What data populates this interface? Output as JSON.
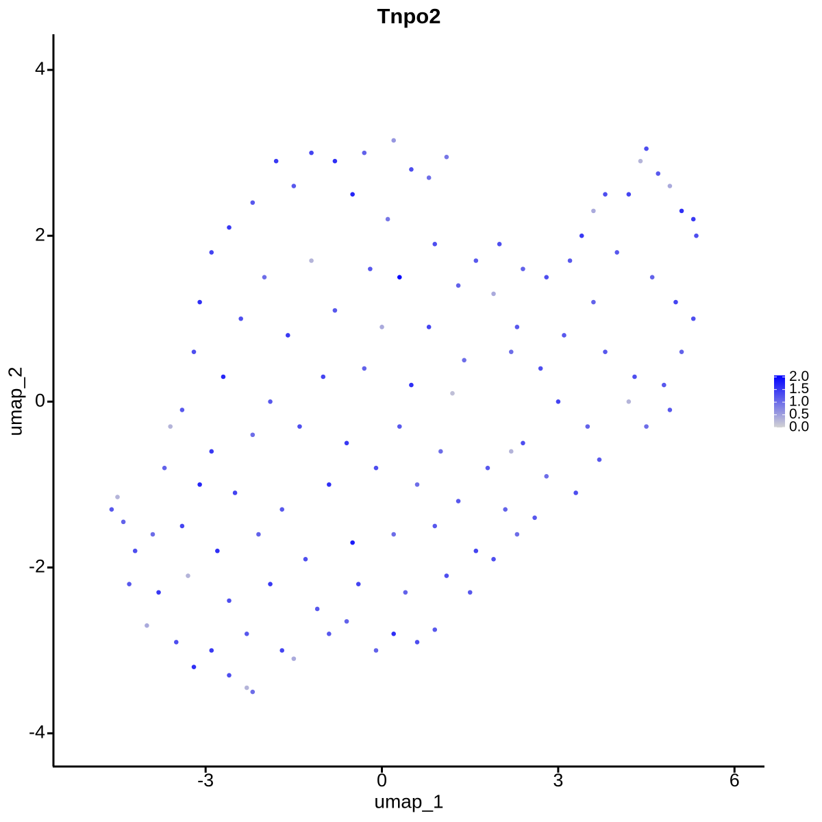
{
  "chart_data": {
    "type": "scatter",
    "title": "Tnpo2",
    "x_label": "umap_1",
    "y_label": "umap_2",
    "xlim": [
      -5.59,
      6.51
    ],
    "ylim": [
      -4.4,
      4.43
    ],
    "xticks": [
      -3,
      0,
      3,
      6
    ],
    "yticks": [
      -4,
      -2,
      0,
      2,
      4
    ],
    "grid": false,
    "color_scale": {
      "low": "#d3d3d3",
      "high": "#0000ff",
      "range": [
        0,
        2.06
      ],
      "ticks": [
        {
          "value": 0,
          "label": "0.0"
        },
        {
          "value": 0.5,
          "label": "0.5"
        },
        {
          "value": 1,
          "label": "1.0"
        },
        {
          "value": 1.5,
          "label": "1.5"
        },
        {
          "value": 2,
          "label": "2.0"
        }
      ]
    },
    "x": [
      -2.2,
      -1.8,
      -1.2,
      -0.8,
      -0.3,
      0.2,
      0.5,
      0.8,
      1.1,
      -2.6,
      -1.5,
      -0.5,
      0.1,
      -2.9,
      -2.0,
      -1.2,
      -0.2,
      0.3,
      0.9,
      1.3,
      -3.1,
      -2.4,
      -1.6,
      -0.8,
      0.0,
      0.8,
      1.4,
      -3.2,
      -2.7,
      -1.9,
      -1.0,
      -0.3,
      0.5,
      1.2,
      -3.4,
      -3.6,
      -2.9,
      -2.2,
      -1.4,
      -0.6,
      0.3,
      1.0,
      -3.7,
      -3.1,
      -2.5,
      -1.7,
      -0.9,
      -0.1,
      0.6,
      1.3,
      -4.6,
      -4.5,
      -4.4,
      -4.2,
      -3.9,
      -3.4,
      -2.8,
      -2.1,
      -1.3,
      -0.5,
      0.2,
      0.9,
      1.6,
      -4.3,
      -3.8,
      -3.3,
      -2.6,
      -1.9,
      -1.1,
      -0.4,
      0.4,
      1.1,
      -4.0,
      -3.5,
      -2.9,
      -2.3,
      -1.7,
      -0.9,
      -0.1,
      0.6,
      0.9,
      -3.2,
      -2.6,
      -2.3,
      -2.2,
      -1.5,
      -0.6,
      0.2,
      1.6,
      2.0,
      2.4,
      1.9,
      2.3,
      2.2,
      2.8,
      3.2,
      3.4,
      3.6,
      3.8,
      4.2,
      4.4,
      4.5,
      4.7,
      4.9,
      5.1,
      5.3,
      5.35,
      4.0,
      4.6,
      5.0,
      5.3,
      3.6,
      3.1,
      2.7,
      3.0,
      3.8,
      4.3,
      4.8,
      5.1,
      4.9,
      4.5,
      3.5,
      2.4,
      1.8,
      2.8,
      3.3,
      2.1,
      2.6,
      1.9,
      2.3,
      1.5,
      3.7,
      4.2,
      2.2
    ],
    "y": [
      2.4,
      2.9,
      3.0,
      2.9,
      3.0,
      3.15,
      2.8,
      2.7,
      2.95,
      2.1,
      2.6,
      2.5,
      2.2,
      1.8,
      1.5,
      1.7,
      1.6,
      1.5,
      1.9,
      1.4,
      1.2,
      1.0,
      0.8,
      1.1,
      0.9,
      0.9,
      0.5,
      0.6,
      0.3,
      0.0,
      0.3,
      0.4,
      0.2,
      0.1,
      -0.1,
      -0.3,
      -0.6,
      -0.4,
      -0.3,
      -0.5,
      -0.3,
      -0.6,
      -0.8,
      -1.0,
      -1.1,
      -1.3,
      -1.0,
      -0.8,
      -1.0,
      -1.2,
      -1.3,
      -1.15,
      -1.45,
      -1.8,
      -1.6,
      -1.5,
      -1.8,
      -1.6,
      -1.9,
      -1.7,
      -1.6,
      -1.5,
      -1.8,
      -2.2,
      -2.3,
      -2.1,
      -2.4,
      -2.2,
      -2.5,
      -2.2,
      -2.3,
      -2.1,
      -2.7,
      -2.9,
      -3.0,
      -2.8,
      -3.0,
      -2.8,
      -3.0,
      -2.9,
      -2.75,
      -3.2,
      -3.3,
      -3.45,
      -3.5,
      -3.1,
      -2.65,
      -2.8,
      1.7,
      1.9,
      1.6,
      1.3,
      0.9,
      0.6,
      1.5,
      1.7,
      2.0,
      2.3,
      2.5,
      2.5,
      2.9,
      3.05,
      2.75,
      2.6,
      2.3,
      2.2,
      2.0,
      1.8,
      1.5,
      1.2,
      1.0,
      1.2,
      0.8,
      0.4,
      0.0,
      0.6,
      0.3,
      0.2,
      0.6,
      -0.1,
      -0.3,
      -0.3,
      -0.5,
      -0.8,
      -0.9,
      -1.1,
      -1.3,
      -1.4,
      -1.9,
      -1.6,
      -2.3,
      -0.7,
      0.0,
      -0.6
    ],
    "values": [
      1.2,
      1.5,
      1.4,
      1.6,
      1.1,
      0.6,
      1.3,
      1.0,
      0.9,
      1.5,
      1.2,
      1.7,
      0.9,
      1.4,
      1.0,
      0.3,
      1.2,
      2.0,
      1.3,
      1.1,
      1.6,
      1.3,
      1.5,
      1.2,
      0.4,
      1.4,
      1.0,
      1.3,
      1.7,
      1.2,
      1.4,
      1.1,
      1.6,
      0.2,
      1.2,
      0.3,
      1.5,
      1.0,
      1.3,
      1.5,
      1.2,
      1.0,
      1.1,
      1.7,
      1.4,
      1.2,
      1.6,
      1.3,
      1.0,
      1.2,
      1.2,
      0.3,
      1.1,
      1.3,
      1.0,
      1.4,
      1.6,
      1.1,
      1.3,
      1.8,
      1.0,
      1.2,
      1.4,
      1.2,
      1.5,
      0.3,
      1.3,
      1.5,
      1.2,
      1.4,
      1.1,
      1.3,
      0.4,
      1.3,
      1.5,
      1.2,
      1.4,
      1.2,
      1.1,
      1.3,
      1.2,
      1.6,
      1.3,
      0.3,
      1.0,
      0.4,
      1.1,
      1.6,
      1.2,
      1.3,
      1.1,
      0.4,
      1.2,
      1.0,
      1.3,
      1.2,
      1.5,
      0.4,
      1.3,
      1.4,
      0.3,
      1.3,
      1.2,
      0.4,
      1.6,
      1.5,
      1.3,
      1.2,
      1.1,
      1.4,
      1.3,
      1.1,
      1.2,
      1.3,
      1.4,
      1.2,
      1.3,
      1.2,
      1.1,
      1.2,
      1.0,
      1.1,
      1.3,
      1.2,
      1.0,
      1.3,
      1.1,
      1.2,
      1.3,
      1.0,
      1.2,
      1.2,
      0.3,
      0.3
    ]
  }
}
